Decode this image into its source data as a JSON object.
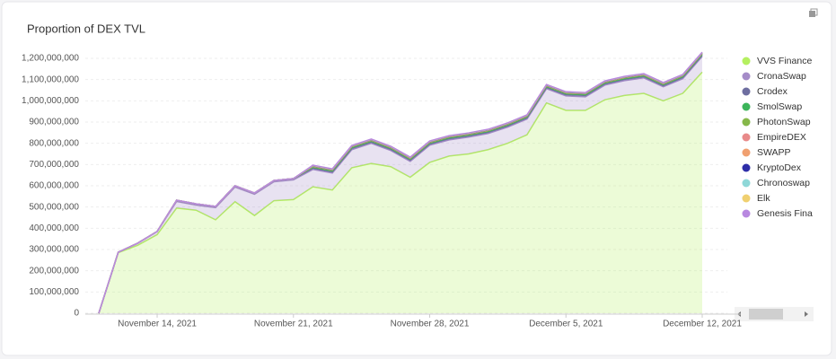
{
  "chart_data": {
    "type": "stacked-area",
    "title": "Proportion of DEX TVL",
    "legend": "right",
    "grid": true,
    "x": [
      "2021-11-11",
      "2021-11-12",
      "2021-11-13",
      "2021-11-14",
      "2021-11-15",
      "2021-11-16",
      "2021-11-17",
      "2021-11-18",
      "2021-11-19",
      "2021-11-20",
      "2021-11-21",
      "2021-11-22",
      "2021-11-23",
      "2021-11-24",
      "2021-11-25",
      "2021-11-26",
      "2021-11-27",
      "2021-11-28",
      "2021-11-29",
      "2021-11-30",
      "2021-12-01",
      "2021-12-02",
      "2021-12-03",
      "2021-12-04",
      "2021-12-05",
      "2021-12-06",
      "2021-12-07",
      "2021-12-08",
      "2021-12-09",
      "2021-12-10",
      "2021-12-11",
      "2021-12-12"
    ],
    "xlim": [
      "2021-11-11",
      "2021-12-12"
    ],
    "xticks": [
      {
        "value": "2021-11-14",
        "label": "November 14, 2021"
      },
      {
        "value": "2021-11-21",
        "label": "November 21, 2021"
      },
      {
        "value": "2021-11-28",
        "label": "November 28, 2021"
      },
      {
        "value": "2021-12-05",
        "label": "December 5, 2021"
      },
      {
        "value": "2021-12-12",
        "label": "December 12, 2021"
      }
    ],
    "ylim": [
      0,
      1200000000
    ],
    "yticks": [
      0,
      {
        "value": 100000000,
        "label": "100,000,000"
      },
      {
        "value": 200000000,
        "label": "200,000,000"
      },
      {
        "value": 300000000,
        "label": "300,000,000"
      },
      {
        "value": 400000000,
        "label": "400,000,000"
      },
      {
        "value": 500000000,
        "label": "500,000,000"
      },
      {
        "value": 600000000,
        "label": "600,000,000"
      },
      {
        "value": 700000000,
        "label": "700,000,000"
      },
      {
        "value": 800000000,
        "label": "800,000,000"
      },
      {
        "value": 900000000,
        "label": "900,000,000"
      },
      {
        "value": 1000000000,
        "label": "1,000,000,000"
      },
      {
        "value": 1100000000,
        "label": "1,100,000,000"
      },
      {
        "value": 1200000000,
        "label": "1,200,000,000"
      }
    ],
    "series": [
      {
        "name": "VVS Finance",
        "color": "#b5f060",
        "values": [
          0,
          285000000,
          320000000,
          370000000,
          495000000,
          485000000,
          440000000,
          525000000,
          460000000,
          530000000,
          535000000,
          595000000,
          580000000,
          685000000,
          705000000,
          690000000,
          640000000,
          710000000,
          740000000,
          750000000,
          770000000,
          800000000,
          840000000,
          990000000,
          955000000,
          955000000,
          1005000000,
          1025000000,
          1035000000,
          1000000000,
          1035000000,
          1135000000
        ]
      },
      {
        "name": "CronaSwap",
        "color": "#a58cc8",
        "values": [
          0,
          2000000,
          10000000,
          15000000,
          31000000,
          24000000,
          57000000,
          69000000,
          100000000,
          89000000,
          93000000,
          82000000,
          80000000,
          85000000,
          95000000,
          76000000,
          75000000,
          81000000,
          76000000,
          79000000,
          76000000,
          76000000,
          74000000,
          67000000,
          68000000,
          64000000,
          69000000,
          70000000,
          73000000,
          66000000,
          69000000,
          74000000
        ]
      },
      {
        "name": "Crodex",
        "color": "#6e6ea0",
        "values": [
          0,
          0,
          0,
          0,
          6000000,
          6000000,
          6000000,
          6000000,
          6000000,
          6000000,
          6000000,
          6000000,
          6000000,
          6000000,
          6000000,
          6000000,
          6000000,
          6000000,
          6000000,
          6000000,
          6000000,
          6000000,
          6000000,
          6000000,
          6000000,
          6000000,
          6000000,
          6000000,
          6000000,
          6000000,
          6000000,
          6000000
        ]
      },
      {
        "name": "SmolSwap",
        "color": "#3cb55a",
        "values": [
          0,
          0,
          0,
          0,
          0,
          0,
          0,
          0,
          0,
          0,
          0,
          4000000,
          4000000,
          4000000,
          4000000,
          4000000,
          4000000,
          4000000,
          4000000,
          4000000,
          4000000,
          4000000,
          4000000,
          4000000,
          4000000,
          4000000,
          4000000,
          4000000,
          4000000,
          4000000,
          4000000,
          4000000
        ]
      },
      {
        "name": "PhotonSwap",
        "color": "#86b84a",
        "values": [
          0,
          0,
          0,
          0,
          0,
          0,
          0,
          0,
          0,
          0,
          0,
          3000000,
          3000000,
          3000000,
          3000000,
          3000000,
          3000000,
          3000000,
          3000000,
          3000000,
          3000000,
          3000000,
          3000000,
          3000000,
          3000000,
          3000000,
          3000000,
          3000000,
          3000000,
          3000000,
          3000000,
          3000000
        ]
      },
      {
        "name": "EmpireDEX",
        "color": "#e88a8a",
        "values": [
          0,
          0,
          0,
          0,
          0,
          0,
          0,
          0,
          0,
          0,
          0,
          2000000,
          2000000,
          2000000,
          2000000,
          2000000,
          2000000,
          2000000,
          2000000,
          2000000,
          2000000,
          2000000,
          2000000,
          2000000,
          2000000,
          2000000,
          2000000,
          2000000,
          2000000,
          2000000,
          2000000,
          2000000
        ]
      },
      {
        "name": "SWAPP",
        "color": "#f0a070",
        "values": [
          0,
          0,
          0,
          0,
          0,
          0,
          0,
          0,
          0,
          0,
          0,
          1000000,
          1000000,
          1000000,
          1000000,
          1000000,
          1000000,
          1000000,
          1000000,
          1000000,
          1000000,
          1000000,
          1000000,
          1000000,
          1000000,
          1000000,
          1000000,
          1000000,
          1000000,
          1000000,
          1000000,
          1000000
        ]
      },
      {
        "name": "KryptoDex",
        "color": "#2e2ea8",
        "values": [
          0,
          0,
          0,
          0,
          0,
          0,
          0,
          0,
          0,
          0,
          0,
          1000000,
          1000000,
          1000000,
          1000000,
          1000000,
          1000000,
          1000000,
          1000000,
          1000000,
          1000000,
          1000000,
          1000000,
          1000000,
          1000000,
          1000000,
          1000000,
          1000000,
          1000000,
          1000000,
          1000000,
          1000000
        ]
      },
      {
        "name": "Chronoswap",
        "color": "#8fd8d8",
        "values": [
          0,
          0,
          0,
          0,
          0,
          0,
          0,
          0,
          0,
          0,
          0,
          1000000,
          1000000,
          1000000,
          1000000,
          1000000,
          1000000,
          1000000,
          1000000,
          1000000,
          1000000,
          1000000,
          1000000,
          1000000,
          1000000,
          1000000,
          1000000,
          1000000,
          1000000,
          1000000,
          1000000,
          1000000
        ]
      },
      {
        "name": "Elk",
        "color": "#f0d070",
        "values": [
          0,
          0,
          0,
          0,
          0,
          0,
          0,
          0,
          0,
          0,
          0,
          1000000,
          1000000,
          1000000,
          1000000,
          1000000,
          1000000,
          1000000,
          1000000,
          1000000,
          1000000,
          1000000,
          1000000,
          1000000,
          1000000,
          1000000,
          1000000,
          1000000,
          1000000,
          1000000,
          1000000,
          1000000
        ]
      },
      {
        "name": "Genesis Fina",
        "color": "#b888e0",
        "values": [
          0,
          0,
          0,
          0,
          0,
          0,
          0,
          0,
          0,
          0,
          0,
          1000000,
          1000000,
          1000000,
          1000000,
          1000000,
          1000000,
          1000000,
          1000000,
          1000000,
          1000000,
          1000000,
          1000000,
          1000000,
          1000000,
          1000000,
          1000000,
          1000000,
          1000000,
          1000000,
          1000000,
          1000000
        ]
      }
    ]
  }
}
